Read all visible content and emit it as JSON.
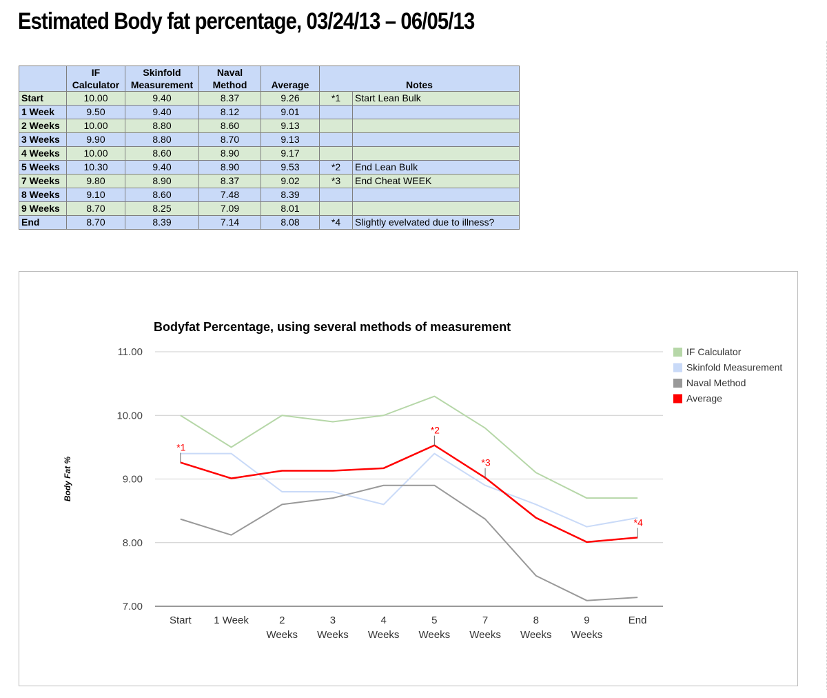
{
  "page_title": "Estimated Body fat percentage, 03/24/13 – 06/05/13",
  "table": {
    "headers": [
      {
        "line1": "",
        "line2": ""
      },
      {
        "line1": "IF",
        "line2": "Calculator"
      },
      {
        "line1": "Skinfold",
        "line2": "Measurement"
      },
      {
        "line1": "Naval",
        "line2": "Method"
      },
      {
        "line1": "",
        "line2": "Average"
      },
      {
        "line1": "",
        "line2": "Notes"
      }
    ],
    "rows": [
      {
        "label": "Start",
        "if": "10.00",
        "skin": "9.40",
        "naval": "8.37",
        "avg": "9.26",
        "mark": "*1",
        "note": "Start Lean Bulk"
      },
      {
        "label": "1 Week",
        "if": "9.50",
        "skin": "9.40",
        "naval": "8.12",
        "avg": "9.01",
        "mark": "",
        "note": ""
      },
      {
        "label": "2 Weeks",
        "if": "10.00",
        "skin": "8.80",
        "naval": "8.60",
        "avg": "9.13",
        "mark": "",
        "note": ""
      },
      {
        "label": "3 Weeks",
        "if": "9.90",
        "skin": "8.80",
        "naval": "8.70",
        "avg": "9.13",
        "mark": "",
        "note": ""
      },
      {
        "label": "4 Weeks",
        "if": "10.00",
        "skin": "8.60",
        "naval": "8.90",
        "avg": "9.17",
        "mark": "",
        "note": ""
      },
      {
        "label": "5 Weeks",
        "if": "10.30",
        "skin": "9.40",
        "naval": "8.90",
        "avg": "9.53",
        "mark": "*2",
        "note": "End Lean Bulk"
      },
      {
        "label": "7 Weeks",
        "if": "9.80",
        "skin": "8.90",
        "naval": "8.37",
        "avg": "9.02",
        "mark": "*3",
        "note": "End Cheat WEEK"
      },
      {
        "label": "8 Weeks",
        "if": "9.10",
        "skin": "8.60",
        "naval": "7.48",
        "avg": "8.39",
        "mark": "",
        "note": ""
      },
      {
        "label": "9 Weeks",
        "if": "8.70",
        "skin": "8.25",
        "naval": "7.09",
        "avg": "8.01",
        "mark": "",
        "note": ""
      },
      {
        "label": "End",
        "if": "8.70",
        "skin": "8.39",
        "naval": "7.14",
        "avg": "8.08",
        "mark": "*4",
        "note": "Slightly evelvated due to illness?"
      }
    ]
  },
  "colors": {
    "header_blue": "#c9daf8",
    "row_green": "#d9ead3",
    "row_blue": "#c9daf8"
  },
  "chart_data": {
    "type": "line",
    "title": "Bodyfat Percentage, using several methods of measurement",
    "xlabel": "",
    "ylabel": "Body Fat %",
    "ylim": [
      7,
      11
    ],
    "yticks": [
      "7.00",
      "8.00",
      "9.00",
      "10.00",
      "11.00"
    ],
    "grid": true,
    "legend_position": "right",
    "categories": [
      [
        "Start"
      ],
      [
        "1 Week"
      ],
      [
        "2",
        "Weeks"
      ],
      [
        "3",
        "Weeks"
      ],
      [
        "4",
        "Weeks"
      ],
      [
        "5",
        "Weeks"
      ],
      [
        "7",
        "Weeks"
      ],
      [
        "8",
        "Weeks"
      ],
      [
        "9",
        "Weeks"
      ],
      [
        "End"
      ]
    ],
    "series": [
      {
        "name": "IF Calculator",
        "color": "#b6d7a8",
        "values": [
          10.0,
          9.5,
          10.0,
          9.9,
          10.0,
          10.3,
          9.8,
          9.1,
          8.7,
          8.7
        ]
      },
      {
        "name": "Skinfold Measurement",
        "color": "#c9daf8",
        "values": [
          9.4,
          9.4,
          8.8,
          8.8,
          8.6,
          9.4,
          8.9,
          8.6,
          8.25,
          8.39
        ]
      },
      {
        "name": "Naval Method",
        "color": "#999999",
        "values": [
          8.37,
          8.12,
          8.6,
          8.7,
          8.9,
          8.9,
          8.37,
          7.48,
          7.09,
          7.14
        ]
      },
      {
        "name": "Average",
        "color": "#ff0000",
        "values": [
          9.26,
          9.01,
          9.13,
          9.13,
          9.17,
          9.53,
          9.02,
          8.39,
          8.01,
          8.08
        ]
      }
    ],
    "annotations": [
      {
        "series": "Average",
        "index": 0,
        "text": "*1"
      },
      {
        "series": "Average",
        "index": 5,
        "text": "*2"
      },
      {
        "series": "Average",
        "index": 6,
        "text": "*3"
      },
      {
        "series": "Average",
        "index": 9,
        "text": "*4"
      }
    ]
  }
}
